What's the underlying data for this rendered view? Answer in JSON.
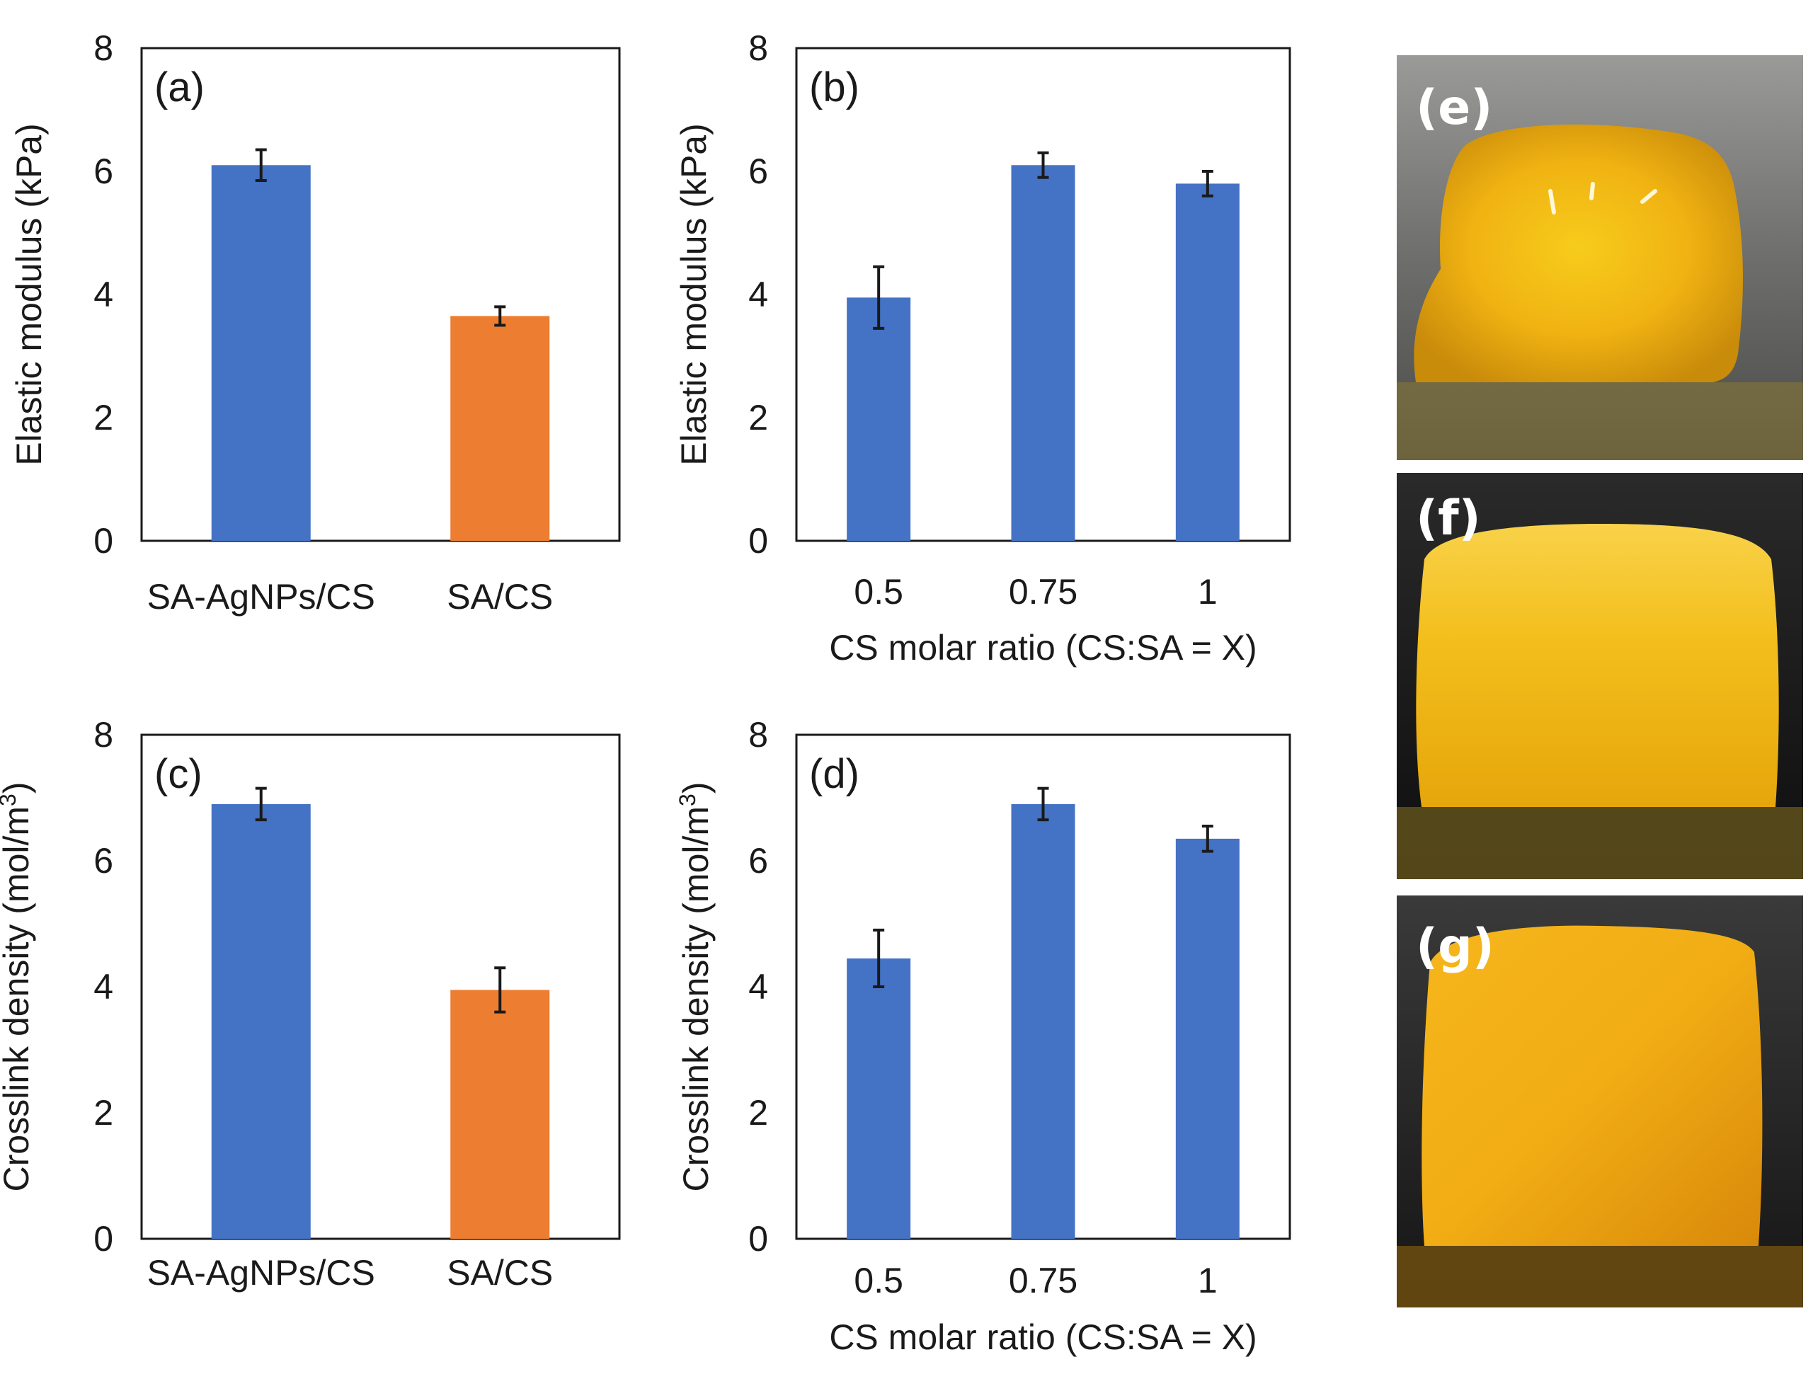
{
  "colors": {
    "blue": "#4472c4",
    "orange": "#ed7d31",
    "axis": "#1a1a1a"
  },
  "chart_data": [
    {
      "panel": "(a)",
      "type": "bar",
      "categories": [
        "SA-AgNPs/CS",
        "SA/CS"
      ],
      "values": [
        6.1,
        3.65
      ],
      "errors": [
        0.25,
        0.15
      ],
      "bar_colors": [
        "#4472c4",
        "#ed7d31"
      ],
      "ylabel": "Elastic modulus (kPa)",
      "xlabel": "",
      "ylim": [
        0,
        8
      ],
      "yticks": [
        "0",
        "2",
        "4",
        "6",
        "8"
      ],
      "grid": false
    },
    {
      "panel": "(b)",
      "type": "bar",
      "categories": [
        "0.5",
        "0.75",
        "1"
      ],
      "values": [
        3.95,
        6.1,
        5.8
      ],
      "errors": [
        0.5,
        0.2,
        0.2
      ],
      "bar_colors": [
        "#4472c4",
        "#4472c4",
        "#4472c4"
      ],
      "ylabel": "Elastic modulus (kPa)",
      "xlabel": "CS molar ratio (CS:SA = X)",
      "ylim": [
        0,
        8
      ],
      "yticks": [
        "0",
        "2",
        "4",
        "6",
        "8"
      ],
      "grid": false
    },
    {
      "panel": "(c)",
      "type": "bar",
      "categories": [
        "SA-AgNPs/CS",
        "SA/CS"
      ],
      "values": [
        6.9,
        3.95
      ],
      "errors": [
        0.25,
        0.35
      ],
      "bar_colors": [
        "#4472c4",
        "#ed7d31"
      ],
      "ylabel_main": "Crosslink density (mol/m",
      "ylabel_sup": "3",
      "ylabel_end": ")",
      "xlabel": "",
      "ylim": [
        0,
        8
      ],
      "yticks": [
        "0",
        "2",
        "4",
        "6",
        "8"
      ],
      "grid": false
    },
    {
      "panel": "(d)",
      "type": "bar",
      "categories": [
        "0.5",
        "0.75",
        "1"
      ],
      "values": [
        4.45,
        6.9,
        6.35
      ],
      "errors": [
        0.45,
        0.25,
        0.2
      ],
      "bar_colors": [
        "#4472c4",
        "#4472c4",
        "#4472c4"
      ],
      "ylabel_main": "Crosslink density (mol/m",
      "ylabel_sup": "3",
      "ylabel_end": ")",
      "xlabel": "CS molar ratio (CS:SA = X)",
      "ylim": [
        0,
        8
      ],
      "yticks": [
        "0",
        "2",
        "4",
        "6",
        "8"
      ],
      "grid": false
    }
  ],
  "photos": [
    {
      "label": "(e)"
    },
    {
      "label": "(f)"
    },
    {
      "label": "(g)"
    }
  ]
}
